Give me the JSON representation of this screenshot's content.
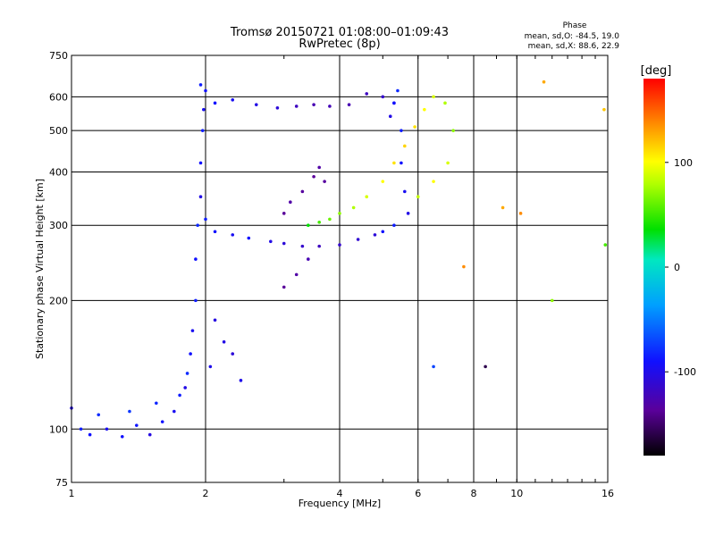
{
  "chart_data": {
    "type": "scatter",
    "title": "Tromsø 20150721 01:08:00–01:09:43",
    "subtitle": "RwPretec (8p)",
    "xlabel": "Frequency [MHz]",
    "ylabel": "Stationary phase Virtual Height [km]",
    "x_scale": "log",
    "y_scale": "log",
    "xlim": [
      1,
      16
    ],
    "ylim": [
      75,
      750
    ],
    "x_ticks": [
      1,
      2,
      4,
      6,
      8,
      10,
      16
    ],
    "x_tick_labels": [
      "1",
      "2",
      "4",
      "6",
      "8",
      "10",
      "16"
    ],
    "y_ticks": [
      75,
      100,
      200,
      300,
      400,
      500,
      600,
      750
    ],
    "y_tick_labels": [
      "75",
      "100",
      "200",
      "300",
      "400",
      "500",
      "600",
      "750"
    ],
    "grid": true,
    "stats": {
      "title": "Phase",
      "line_o": "mean, sd,O: -84.5, 19.0",
      "line_x": "mean, sd,X:  88.6, 22.9"
    },
    "colorbar": {
      "label": "[deg]",
      "range": [
        -180,
        180
      ],
      "ticks": [
        100,
        0,
        -100
      ],
      "tick_labels": [
        "100",
        "0",
        "-100"
      ]
    },
    "series": [
      {
        "points": [
          [
            1.0,
            112,
            -110
          ],
          [
            1.05,
            100,
            -95
          ],
          [
            1.1,
            97,
            -100
          ],
          [
            1.15,
            108,
            -90
          ],
          [
            1.2,
            100,
            -105
          ],
          [
            1.3,
            96,
            -100
          ],
          [
            1.35,
            110,
            -85
          ],
          [
            1.4,
            102,
            -98
          ],
          [
            1.5,
            97,
            -112
          ],
          [
            1.55,
            115,
            -92
          ],
          [
            1.6,
            104,
            -100
          ],
          [
            1.7,
            110,
            -105
          ],
          [
            1.75,
            120,
            -95
          ],
          [
            1.8,
            125,
            -110
          ],
          [
            1.82,
            135,
            -90
          ],
          [
            1.85,
            150,
            -100
          ],
          [
            1.87,
            170,
            -105
          ],
          [
            1.9,
            200,
            -95
          ],
          [
            1.9,
            250,
            -100
          ],
          [
            1.92,
            300,
            -90
          ],
          [
            1.95,
            350,
            -110
          ],
          [
            1.95,
            420,
            -100
          ],
          [
            1.97,
            500,
            -95
          ],
          [
            1.98,
            560,
            -105
          ],
          [
            2.0,
            620,
            -100
          ],
          [
            1.95,
            640,
            -95
          ],
          [
            2.05,
            140,
            -108
          ],
          [
            2.1,
            180,
            -112
          ],
          [
            2.2,
            160,
            -110
          ],
          [
            2.3,
            150,
            -115
          ],
          [
            2.4,
            130,
            -108
          ]
        ]
      },
      {
        "points": [
          [
            2.0,
            310,
            -95
          ],
          [
            2.1,
            290,
            -100
          ],
          [
            2.3,
            285,
            -105
          ],
          [
            2.5,
            280,
            -100
          ],
          [
            2.8,
            275,
            -110
          ],
          [
            3.0,
            272,
            -115
          ],
          [
            3.3,
            268,
            -120
          ],
          [
            3.6,
            268,
            -125
          ],
          [
            4.0,
            270,
            -120
          ],
          [
            4.4,
            278,
            -118
          ],
          [
            4.8,
            285,
            -115
          ],
          [
            5.0,
            290,
            -100
          ],
          [
            5.3,
            300,
            -95
          ]
        ]
      },
      {
        "points": [
          [
            2.1,
            580,
            -100
          ],
          [
            2.3,
            590,
            -105
          ],
          [
            2.6,
            575,
            -110
          ],
          [
            2.9,
            565,
            -115
          ],
          [
            3.2,
            570,
            -125
          ],
          [
            3.5,
            575,
            -130
          ],
          [
            3.8,
            570,
            -128
          ],
          [
            4.2,
            575,
            -130
          ],
          [
            4.6,
            610,
            -125
          ],
          [
            5.0,
            600,
            -120
          ],
          [
            5.3,
            580,
            -115
          ]
        ]
      },
      {
        "points": [
          [
            3.0,
            320,
            -140
          ],
          [
            3.1,
            340,
            -135
          ],
          [
            3.3,
            360,
            -138
          ],
          [
            3.5,
            390,
            -140
          ],
          [
            3.6,
            410,
            -135
          ],
          [
            3.7,
            380,
            -138
          ],
          [
            3.4,
            250,
            -130
          ],
          [
            3.2,
            230,
            -135
          ],
          [
            3.0,
            215,
            -140
          ]
        ]
      },
      {
        "points": [
          [
            3.4,
            300,
            40
          ],
          [
            3.6,
            305,
            60
          ],
          [
            3.8,
            310,
            70
          ],
          [
            4.0,
            320,
            80
          ],
          [
            4.3,
            330,
            90
          ],
          [
            4.6,
            350,
            100
          ],
          [
            5.0,
            380,
            110
          ],
          [
            5.3,
            420,
            120
          ],
          [
            5.6,
            460,
            125
          ],
          [
            5.9,
            510,
            120
          ],
          [
            6.2,
            560,
            110
          ],
          [
            6.5,
            600,
            100
          ],
          [
            6.9,
            580,
            90
          ],
          [
            7.2,
            500,
            80
          ],
          [
            7.0,
            420,
            100
          ],
          [
            6.5,
            380,
            110
          ],
          [
            6.0,
            350,
            95
          ]
        ]
      },
      {
        "points": [
          [
            5.2,
            540,
            -110
          ],
          [
            5.3,
            580,
            -100
          ],
          [
            5.4,
            620,
            -90
          ],
          [
            5.5,
            500,
            -95
          ],
          [
            5.5,
            420,
            -100
          ],
          [
            5.6,
            360,
            -105
          ],
          [
            5.7,
            320,
            -110
          ]
        ]
      },
      {
        "points": [
          [
            9.3,
            330,
            140
          ],
          [
            10.2,
            320,
            150
          ],
          [
            11.5,
            650,
            140
          ],
          [
            12.0,
            200,
            80
          ],
          [
            15.7,
            560,
            130
          ],
          [
            15.8,
            270,
            60
          ],
          [
            8.5,
            140,
            -160
          ],
          [
            7.6,
            240,
            150
          ],
          [
            6.5,
            140,
            -80
          ]
        ]
      }
    ]
  }
}
